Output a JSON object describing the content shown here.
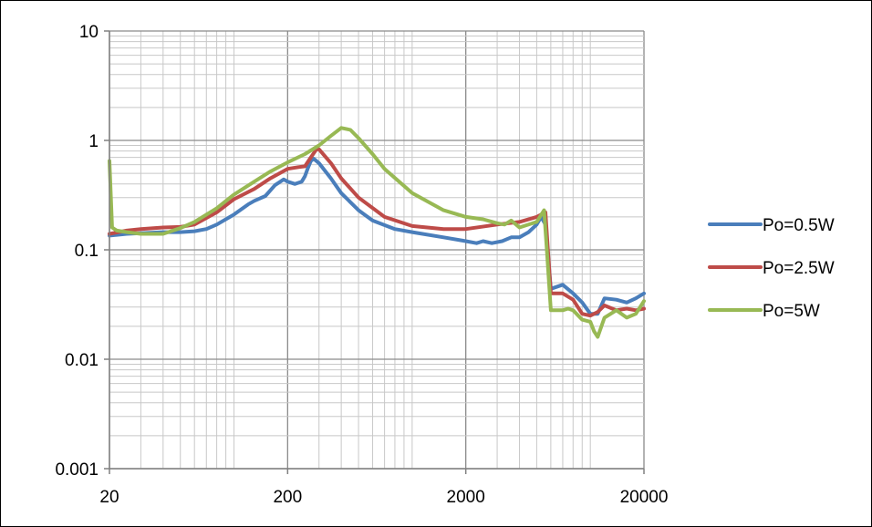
{
  "chart_data": {
    "type": "line",
    "title": "",
    "xlabel": "",
    "ylabel": "",
    "x_scale": "log",
    "y_scale": "log",
    "xlim": [
      20,
      20000
    ],
    "ylim": [
      0.001,
      10
    ],
    "x_tick_labels": [
      "20",
      "200",
      "2000",
      "20000"
    ],
    "y_tick_labels": [
      "0.001",
      "0.01",
      "0.1",
      "1",
      "10"
    ],
    "grid": true,
    "legend_position": "right",
    "series": [
      {
        "name": "Po=0.5W",
        "color": "#4a7ebb",
        "x": [
          20,
          25,
          30,
          40,
          50,
          60,
          70,
          80,
          100,
          120,
          130,
          150,
          170,
          190,
          200,
          220,
          240,
          250,
          260,
          270,
          280,
          300,
          350,
          400,
          500,
          600,
          800,
          1000,
          1500,
          2000,
          2300,
          2500,
          2800,
          3200,
          3600,
          4000,
          4500,
          5000,
          5300,
          5600,
          6000,
          7000,
          8000,
          9000,
          10000,
          11000,
          12000,
          14000,
          16000,
          18000,
          20000
        ],
        "y": [
          0.135,
          0.14,
          0.142,
          0.145,
          0.145,
          0.148,
          0.155,
          0.17,
          0.21,
          0.26,
          0.28,
          0.31,
          0.39,
          0.44,
          0.42,
          0.4,
          0.42,
          0.47,
          0.56,
          0.65,
          0.68,
          0.62,
          0.45,
          0.33,
          0.23,
          0.185,
          0.155,
          0.145,
          0.13,
          0.12,
          0.115,
          0.12,
          0.115,
          0.12,
          0.13,
          0.13,
          0.145,
          0.17,
          0.2,
          0.17,
          0.044,
          0.048,
          0.04,
          0.033,
          0.026,
          0.026,
          0.036,
          0.035,
          0.033,
          0.036,
          0.04
        ]
      },
      {
        "name": "Po=2.5W",
        "color": "#be4b48",
        "x": [
          20,
          25,
          30,
          40,
          50,
          60,
          80,
          100,
          130,
          160,
          200,
          230,
          250,
          270,
          290,
          300,
          350,
          400,
          500,
          700,
          1000,
          1500,
          2000,
          3000,
          4000,
          5000,
          5600,
          6000,
          7000,
          8000,
          9000,
          10000,
          11000,
          12000,
          14000,
          16000,
          18000,
          20000
        ],
        "y": [
          0.14,
          0.15,
          0.155,
          0.16,
          0.162,
          0.17,
          0.22,
          0.29,
          0.36,
          0.45,
          0.55,
          0.57,
          0.58,
          0.7,
          0.83,
          0.83,
          0.62,
          0.45,
          0.3,
          0.2,
          0.165,
          0.155,
          0.155,
          0.17,
          0.18,
          0.2,
          0.22,
          0.04,
          0.04,
          0.035,
          0.026,
          0.025,
          0.027,
          0.031,
          0.028,
          0.029,
          0.028,
          0.029
        ]
      },
      {
        "name": "Po=5W",
        "color": "#98b954",
        "x": [
          20,
          20.7,
          22,
          25,
          30,
          40,
          50,
          60,
          80,
          100,
          130,
          160,
          200,
          250,
          300,
          350,
          400,
          450,
          500,
          600,
          700,
          1000,
          1500,
          2000,
          2500,
          3000,
          3300,
          3600,
          4000,
          5000,
          5500,
          5700,
          6000,
          7000,
          7500,
          8000,
          9000,
          10000,
          10500,
          11000,
          12000,
          14000,
          16000,
          18000,
          20000
        ],
        "y": [
          0.65,
          0.16,
          0.15,
          0.145,
          0.14,
          0.14,
          0.158,
          0.18,
          0.24,
          0.32,
          0.42,
          0.52,
          0.63,
          0.75,
          0.9,
          1.1,
          1.3,
          1.25,
          1.05,
          0.75,
          0.55,
          0.33,
          0.23,
          0.2,
          0.19,
          0.175,
          0.17,
          0.185,
          0.16,
          0.18,
          0.23,
          0.1,
          0.028,
          0.028,
          0.029,
          0.028,
          0.023,
          0.022,
          0.018,
          0.016,
          0.024,
          0.028,
          0.024,
          0.026,
          0.034
        ]
      }
    ]
  }
}
